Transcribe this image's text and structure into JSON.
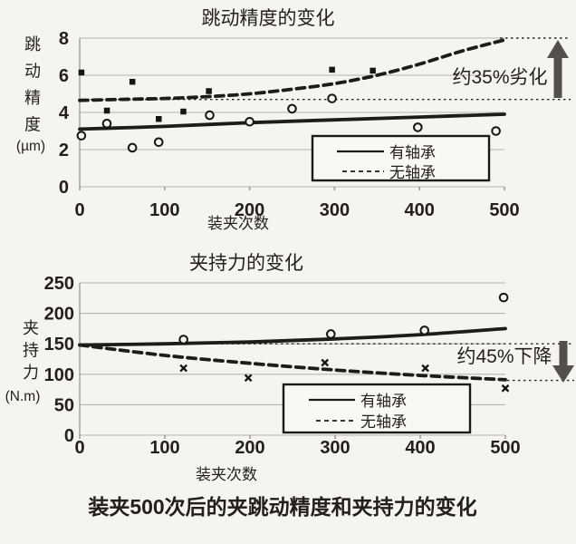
{
  "figure": {
    "caption": "装夹500次后的夹跳动精度和夹持力的变化"
  },
  "chart_data": [
    {
      "type": "line",
      "title": "跳动精度的变化",
      "xlabel": "装夹次数",
      "ylabel": "跳动精度",
      "ylabel_unit": "(µm)",
      "xlim": [
        0,
        500
      ],
      "ylim": [
        0,
        8
      ],
      "xticks": [
        0,
        100,
        200,
        300,
        400,
        500
      ],
      "yticks": [
        0,
        2,
        4,
        6,
        8
      ],
      "grid": true,
      "legend_position": "inside-bottom-right",
      "series": [
        {
          "name": "有轴承",
          "line": "solid",
          "x": [
            0,
            100,
            200,
            300,
            400,
            500
          ],
          "y": [
            3.1,
            3.25,
            3.45,
            3.6,
            3.75,
            3.9
          ]
        },
        {
          "name": "无轴承",
          "line": "dashed",
          "x": [
            0,
            50,
            100,
            150,
            200,
            250,
            300,
            350,
            400,
            450,
            500
          ],
          "y": [
            4.65,
            4.7,
            4.75,
            4.85,
            5.0,
            5.25,
            5.55,
            6.0,
            6.6,
            7.3,
            7.9
          ]
        }
      ],
      "scatter": [
        {
          "marker": "filled-square",
          "points": [
            [
              2,
              6.15
            ],
            [
              32,
              4.1
            ],
            [
              62,
              5.65
            ],
            [
              93,
              3.65
            ],
            [
              122,
              4.05
            ],
            [
              152,
              5.15
            ],
            [
              297,
              6.3
            ],
            [
              345,
              6.25
            ]
          ]
        },
        {
          "marker": "open-circle",
          "points": [
            [
              2,
              2.75
            ],
            [
              32,
              3.4
            ],
            [
              62,
              2.1
            ],
            [
              93,
              2.4
            ],
            [
              153,
              3.85
            ],
            [
              200,
              3.5
            ],
            [
              250,
              4.2
            ],
            [
              297,
              4.75
            ],
            [
              398,
              3.2
            ],
            [
              490,
              3.0
            ]
          ]
        }
      ],
      "reference_levels": {
        "start": 4.7,
        "end": 8
      },
      "annotation": "约35%劣化",
      "annotation_direction": "up"
    },
    {
      "type": "line",
      "title": "夹持力的变化",
      "xlabel": "装夹次数",
      "ylabel": "夹持力",
      "ylabel_unit": "(N.m)",
      "xlim": [
        0,
        500
      ],
      "ylim": [
        0,
        250
      ],
      "xticks": [
        0,
        100,
        200,
        300,
        400,
        500
      ],
      "yticks": [
        0,
        50,
        100,
        150,
        200,
        250
      ],
      "grid": true,
      "legend_position": "inside-bottom-center",
      "series": [
        {
          "name": "有轴承",
          "line": "solid",
          "x": [
            0,
            100,
            200,
            300,
            400,
            500
          ],
          "y": [
            148,
            150,
            153,
            158,
            165,
            175
          ]
        },
        {
          "name": "无轴承",
          "line": "dashed",
          "x": [
            0,
            100,
            200,
            300,
            400,
            500
          ],
          "y": [
            148,
            131,
            118,
            107,
            98,
            91
          ]
        }
      ],
      "scatter": [
        {
          "marker": "open-circle",
          "points": [
            [
              122,
              157
            ],
            [
              295,
              166
            ],
            [
              405,
              172
            ],
            [
              498,
              226
            ]
          ]
        },
        {
          "marker": "x-mark",
          "points": [
            [
              122,
              110
            ],
            [
              198,
              94
            ],
            [
              288,
              119
            ],
            [
              406,
              110
            ],
            [
              500,
              77
            ]
          ]
        }
      ],
      "reference_levels": {
        "start": 150,
        "end": 90
      },
      "annotation": "约45%下降",
      "annotation_direction": "down"
    }
  ]
}
